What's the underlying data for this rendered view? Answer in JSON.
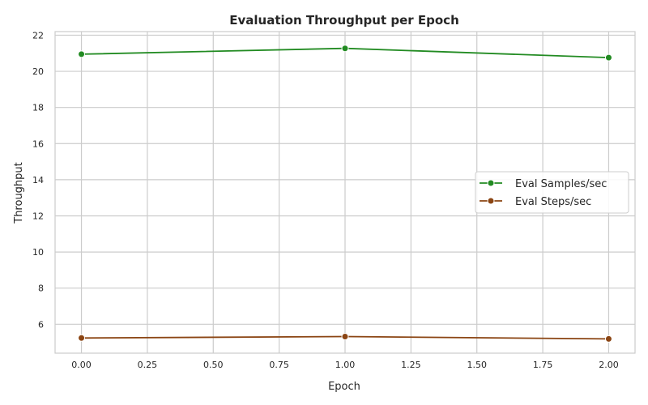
{
  "chart_data": {
    "type": "line",
    "title": "Evaluation Throughput per Epoch",
    "xlabel": "Epoch",
    "ylabel": "Throughput",
    "xlim": [
      -0.1,
      2.1
    ],
    "ylim": [
      4.4,
      22.2
    ],
    "x_ticks": [
      0.0,
      0.25,
      0.5,
      0.75,
      1.0,
      1.25,
      1.5,
      1.75,
      2.0
    ],
    "x_tick_labels": [
      "0.00",
      "0.25",
      "0.50",
      "0.75",
      "1.00",
      "1.25",
      "1.50",
      "1.75",
      "2.00"
    ],
    "y_ticks": [
      6,
      8,
      10,
      12,
      14,
      16,
      18,
      20,
      22
    ],
    "y_tick_labels": [
      "6",
      "8",
      "10",
      "12",
      "14",
      "16",
      "18",
      "20",
      "22"
    ],
    "grid": true,
    "legend_position": "center-right",
    "series": [
      {
        "name": "Eval Samples/sec",
        "color": "#228b22",
        "x": [
          0,
          1,
          2
        ],
        "y": [
          20.95,
          21.27,
          20.76
        ]
      },
      {
        "name": "Eval Steps/sec",
        "color": "#8b4513",
        "x": [
          0,
          1,
          2
        ],
        "y": [
          5.24,
          5.32,
          5.19
        ]
      }
    ]
  }
}
